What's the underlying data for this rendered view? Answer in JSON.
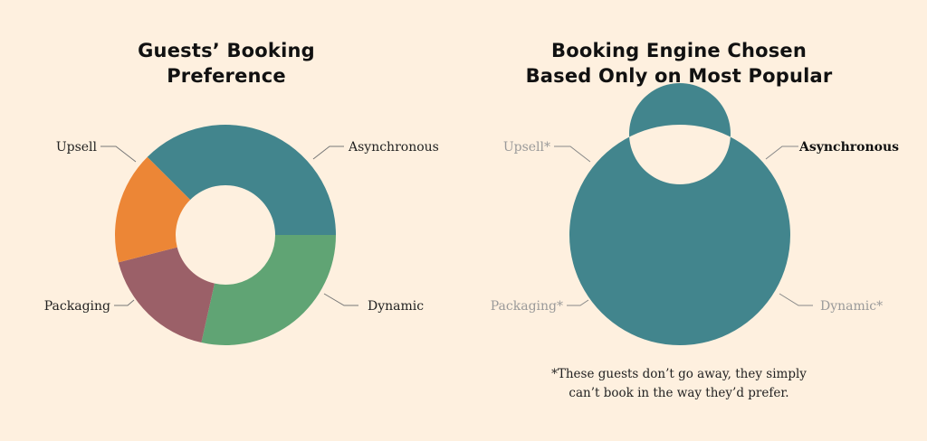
{
  "background": "#FEF0DF",
  "colors": {
    "asynchronous": "#42858D",
    "dynamic": "#60A474",
    "packaging": "#9B6068",
    "upsell": "#EC8636",
    "muted_label": "#9A9A9A",
    "label": "#222222"
  },
  "left": {
    "title_line1": "Guests’ Booking",
    "title_line2": "Preference",
    "labels": {
      "upsell": "Upsell",
      "asynchronous": "Asynchronous",
      "packaging": "Packaging",
      "dynamic": "Dynamic"
    }
  },
  "right": {
    "title_line1": "Booking Engine Chosen",
    "title_line2": "Based Only on Most Popular",
    "labels": {
      "upsell": "Upsell*",
      "asynchronous": "Asynchronous",
      "packaging": "Packaging*",
      "dynamic": "Dynamic*"
    },
    "footnote_line1": "*These guests don’t go away, they simply",
    "footnote_line2": "can’t book in the way they’d prefer."
  },
  "chart_data": [
    {
      "type": "pie",
      "subtype": "donut",
      "title": "Guests’ Booking Preference",
      "categories": [
        "Asynchronous",
        "Dynamic",
        "Packaging",
        "Upsell"
      ],
      "values": [
        37.5,
        28.5,
        17.5,
        16.5
      ],
      "unit": "% (estimated from arc angles)",
      "start_angle_deg": 315,
      "colors": [
        "#42858D",
        "#60A474",
        "#9B6068",
        "#EC8636"
      ],
      "legend": "direct labels with leader lines"
    },
    {
      "type": "pie",
      "subtype": "donut",
      "title": "Booking Engine Chosen Based Only on Most Popular",
      "categories": [
        "Asynchronous",
        "Dynamic*",
        "Packaging*",
        "Upsell*"
      ],
      "values": [
        100,
        0,
        0,
        0
      ],
      "colors": [
        "#42858D",
        "#60A474",
        "#9B6068",
        "#EC8636"
      ],
      "highlighted": "Asynchronous",
      "annotation": "*These guests don’t go away, they simply can’t book in the way they’d prefer.",
      "legend": "direct labels with leader lines; non-chosen labels greyed"
    }
  ]
}
